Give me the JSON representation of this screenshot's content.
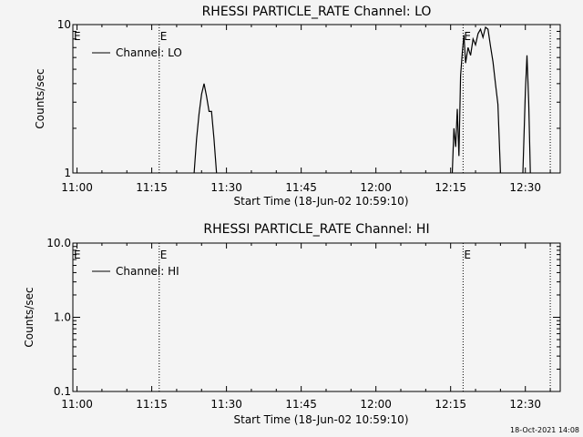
{
  "footer_date": "18-Oct-2021 14:08",
  "chart_data": [
    {
      "type": "line",
      "title": "RHESSI PARTICLE_RATE Channel: LO",
      "xlabel": "Start Time (18-Jun-02 10:59:10)",
      "ylabel": "Counts/sec",
      "yscale": "log",
      "ylim": [
        1,
        10
      ],
      "y_ticks": [
        1,
        10
      ],
      "y_tick_labels": [
        "1",
        "10"
      ],
      "xlim": [
        "10:59:10",
        "12:37:00"
      ],
      "x_ticks": [
        "11:00",
        "11:15",
        "11:30",
        "11:45",
        "12:00",
        "12:15",
        "12:30"
      ],
      "legend": {
        "position": "top-left",
        "label": "Channel: LO"
      },
      "markers": [
        {
          "time": "11:16:30",
          "label": "E"
        },
        {
          "time": "12:17:30",
          "label": "E"
        },
        {
          "time": "12:35:00",
          "label": ""
        }
      ],
      "series": [
        {
          "name": "Channel: LO",
          "segments": [
            [
              [
                "11:23:30",
                1.0
              ],
              [
                "11:24:00",
                1.7
              ],
              [
                "11:24:30",
                2.5
              ],
              [
                "11:25:00",
                3.4
              ],
              [
                "11:25:30",
                4.0
              ],
              [
                "11:26:00",
                3.3
              ],
              [
                "11:26:30",
                2.6
              ],
              [
                "11:27:00",
                2.6
              ],
              [
                "11:27:30",
                1.7
              ],
              [
                "11:28:00",
                1.0
              ]
            ],
            [
              [
                "12:15:20",
                1.0
              ],
              [
                "12:15:40",
                2.0
              ],
              [
                "12:16:00",
                1.5
              ],
              [
                "12:16:20",
                2.7
              ],
              [
                "12:16:40",
                1.3
              ],
              [
                "12:17:00",
                4.5
              ],
              [
                "12:17:20",
                6.5
              ],
              [
                "12:17:40",
                8.5
              ],
              [
                "12:18:00",
                5.5
              ],
              [
                "12:18:30",
                7.0
              ],
              [
                "12:19:00",
                6.2
              ],
              [
                "12:19:30",
                8.0
              ],
              [
                "12:20:00",
                7.3
              ],
              [
                "12:20:30",
                8.7
              ],
              [
                "12:21:00",
                9.3
              ],
              [
                "12:21:30",
                8.2
              ],
              [
                "12:22:00",
                9.6
              ],
              [
                "12:22:30",
                9.3
              ],
              [
                "12:23:00",
                7.2
              ],
              [
                "12:23:30",
                5.6
              ],
              [
                "12:24:00",
                4.0
              ],
              [
                "12:24:30",
                2.9
              ],
              [
                "12:25:00",
                1.0
              ]
            ],
            [
              [
                "12:29:30",
                1.0
              ],
              [
                "12:30:00",
                3.5
              ],
              [
                "12:30:20",
                6.2
              ],
              [
                "12:30:40",
                3.0
              ],
              [
                "12:31:00",
                1.0
              ]
            ]
          ]
        }
      ]
    },
    {
      "type": "line",
      "title": "RHESSI PARTICLE_RATE Channel: HI",
      "xlabel": "Start Time (18-Jun-02 10:59:10)",
      "ylabel": "Counts/sec",
      "yscale": "log",
      "ylim": [
        0.1,
        10
      ],
      "y_ticks": [
        0.1,
        1,
        10
      ],
      "y_tick_labels": [
        "0.1",
        "1.0",
        "10.0"
      ],
      "xlim": [
        "10:59:10",
        "12:37:00"
      ],
      "x_ticks": [
        "11:00",
        "11:15",
        "11:30",
        "11:45",
        "12:00",
        "12:15",
        "12:30"
      ],
      "legend": {
        "position": "top-left",
        "label": "Channel: HI"
      },
      "markers": [
        {
          "time": "11:16:30",
          "label": "E"
        },
        {
          "time": "12:17:30",
          "label": "E"
        },
        {
          "time": "12:35:00",
          "label": ""
        }
      ],
      "series": [
        {
          "name": "Channel: HI",
          "segments": []
        }
      ]
    }
  ]
}
